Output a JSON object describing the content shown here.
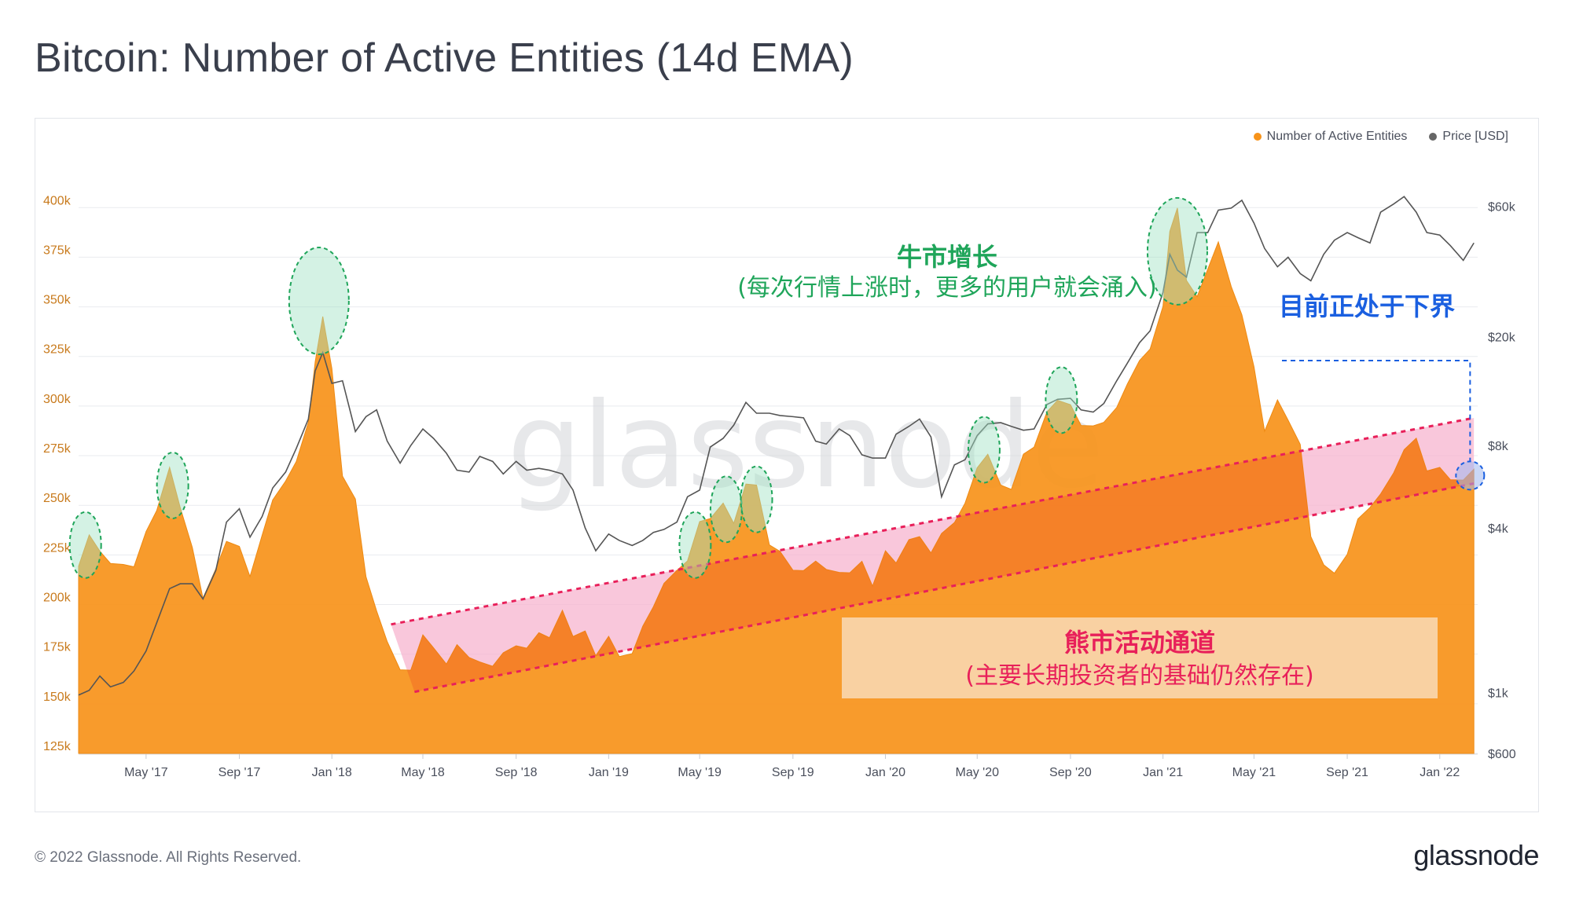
{
  "title": "Bitcoin: Number of Active Entities (14d EMA)",
  "footer": {
    "copyright": "© 2022 Glassnode. All Rights Reserved.",
    "logo": "glassnode"
  },
  "colors": {
    "entities": "#f7931a",
    "price": "#555555",
    "bull_annotation": "#1fa55a",
    "bear_annotation": "#e8205a",
    "current_annotation": "#1a5fe0"
  },
  "chart_data": {
    "type": "area",
    "title": "Bitcoin: Number of Active Entities (14d EMA)",
    "legend_position": "top-right",
    "grid": true,
    "watermark": "glassnode",
    "x_tick_labels": [
      "May '17",
      "Sep '17",
      "Jan '18",
      "May '18",
      "Sep '18",
      "Jan '19",
      "May '19",
      "Sep '19",
      "Jan '20",
      "May '20",
      "Sep '20",
      "Jan '21",
      "May '21",
      "Sep '21",
      "Jan '22"
    ],
    "y_left": {
      "label": "",
      "range": [
        125000,
        410000
      ],
      "tick_values": [
        125000,
        150000,
        175000,
        200000,
        225000,
        250000,
        275000,
        300000,
        325000,
        350000,
        375000,
        400000
      ],
      "tick_labels": [
        "125k",
        "150k",
        "175k",
        "200k",
        "225k",
        "250k",
        "275k",
        "300k",
        "325k",
        "350k",
        "375k",
        "400k"
      ]
    },
    "y_right": {
      "label": "",
      "scale": "log",
      "range": [
        600,
        70000
      ],
      "tick_values": [
        600,
        1000,
        4000,
        8000,
        20000,
        60000
      ],
      "tick_labels": [
        "$600",
        "$1k",
        "$4k",
        "$8k",
        "$20k",
        "$60k"
      ]
    },
    "series": [
      {
        "name": "Number of Active Entities",
        "type": "area",
        "color": "#f7931a",
        "x": [
          "2017-02-01",
          "2017-02-15",
          "2017-03-01",
          "2017-03-15",
          "2017-04-01",
          "2017-04-15",
          "2017-05-01",
          "2017-05-15",
          "2017-06-01",
          "2017-06-15",
          "2017-07-01",
          "2017-07-15",
          "2017-08-01",
          "2017-08-15",
          "2017-09-01",
          "2017-09-15",
          "2017-10-01",
          "2017-10-15",
          "2017-11-01",
          "2017-11-15",
          "2017-12-01",
          "2017-12-10",
          "2017-12-20",
          "2018-01-01",
          "2018-01-15",
          "2018-02-01",
          "2018-02-15",
          "2018-03-01",
          "2018-03-15",
          "2018-04-01",
          "2018-04-15",
          "2018-05-01",
          "2018-05-15",
          "2018-06-01",
          "2018-06-15",
          "2018-07-01",
          "2018-07-15",
          "2018-08-01",
          "2018-08-15",
          "2018-09-01",
          "2018-09-15",
          "2018-10-01",
          "2018-10-15",
          "2018-11-01",
          "2018-11-15",
          "2018-12-01",
          "2018-12-15",
          "2019-01-01",
          "2019-01-15",
          "2019-02-01",
          "2019-02-15",
          "2019-03-01",
          "2019-03-15",
          "2019-04-01",
          "2019-04-15",
          "2019-05-01",
          "2019-05-15",
          "2019-06-01",
          "2019-06-15",
          "2019-07-01",
          "2019-07-15",
          "2019-08-01",
          "2019-08-15",
          "2019-09-01",
          "2019-09-15",
          "2019-10-01",
          "2019-10-15",
          "2019-11-01",
          "2019-11-15",
          "2019-12-01",
          "2019-12-15",
          "2020-01-01",
          "2020-01-15",
          "2020-02-01",
          "2020-02-15",
          "2020-03-01",
          "2020-03-15",
          "2020-04-01",
          "2020-04-15",
          "2020-05-01",
          "2020-05-15",
          "2020-06-01",
          "2020-06-15",
          "2020-07-01",
          "2020-07-15",
          "2020-08-01",
          "2020-08-15",
          "2020-09-01",
          "2020-09-15",
          "2020-10-01",
          "2020-10-15",
          "2020-11-01",
          "2020-11-15",
          "2020-12-01",
          "2020-12-15",
          "2021-01-01",
          "2021-01-10",
          "2021-01-20",
          "2021-02-01",
          "2021-02-15",
          "2021-03-01",
          "2021-03-15",
          "2021-04-01",
          "2021-04-15",
          "2021-05-01",
          "2021-05-15",
          "2021-06-01",
          "2021-06-15",
          "2021-07-01",
          "2021-07-15",
          "2021-08-01",
          "2021-08-15",
          "2021-09-01",
          "2021-09-15",
          "2021-10-01",
          "2021-10-15",
          "2021-11-01",
          "2021-11-15",
          "2021-12-01",
          "2021-12-15",
          "2022-01-01",
          "2022-01-15",
          "2022-02-01",
          "2022-02-15"
        ],
        "values": [
          222000,
          236000,
          226000,
          218000,
          222000,
          219000,
          235000,
          250000,
          270000,
          248000,
          226000,
          205000,
          218000,
          230000,
          232000,
          215000,
          234000,
          250000,
          264000,
          272000,
          290000,
          325000,
          346000,
          318000,
          262000,
          255000,
          214000,
          195000,
          184000,
          168000,
          166000,
          182000,
          180000,
          170000,
          178000,
          176000,
          172000,
          168000,
          173000,
          181000,
          178000,
          184000,
          186000,
          198000,
          183000,
          184000,
          176000,
          184000,
          172000,
          178000,
          190000,
          198000,
          208000,
          219000,
          222000,
          240000,
          246000,
          252000,
          240000,
          258000,
          262000,
          230000,
          225000,
          220000,
          218000,
          221000,
          215000,
          218000,
          216000,
          220000,
          212000,
          228000,
          220000,
          230000,
          236000,
          226000,
          234000,
          244000,
          252000,
          268000,
          273000,
          262000,
          258000,
          274000,
          282000,
          298000,
          302000,
          298000,
          292000,
          290000,
          290000,
          302000,
          312000,
          322000,
          326000,
          352000,
          388000,
          398000,
          366000,
          356000,
          368000,
          380000,
          362000,
          346000,
          318000,
          290000,
          304000,
          292000,
          278000,
          236000,
          220000,
          214000,
          228000,
          244000,
          248000,
          253000,
          268000,
          278000,
          282000,
          270000,
          270000,
          262000,
          260000,
          270000
        ]
      },
      {
        "name": "Price [USD]",
        "type": "line",
        "color": "#555555",
        "x": [
          "2017-02-01",
          "2017-02-15",
          "2017-03-01",
          "2017-03-15",
          "2017-04-01",
          "2017-04-15",
          "2017-05-01",
          "2017-05-15",
          "2017-06-01",
          "2017-06-15",
          "2017-07-01",
          "2017-07-15",
          "2017-08-01",
          "2017-08-15",
          "2017-09-01",
          "2017-09-15",
          "2017-10-01",
          "2017-10-15",
          "2017-11-01",
          "2017-11-15",
          "2017-12-01",
          "2017-12-10",
          "2017-12-20",
          "2018-01-01",
          "2018-01-15",
          "2018-02-01",
          "2018-02-15",
          "2018-03-01",
          "2018-03-15",
          "2018-04-01",
          "2018-04-15",
          "2018-05-01",
          "2018-05-15",
          "2018-06-01",
          "2018-06-15",
          "2018-07-01",
          "2018-07-15",
          "2018-08-01",
          "2018-08-15",
          "2018-09-01",
          "2018-09-15",
          "2018-10-01",
          "2018-10-15",
          "2018-11-01",
          "2018-11-15",
          "2018-12-01",
          "2018-12-15",
          "2019-01-01",
          "2019-01-15",
          "2019-02-01",
          "2019-02-15",
          "2019-03-01",
          "2019-03-15",
          "2019-04-01",
          "2019-04-15",
          "2019-05-01",
          "2019-05-15",
          "2019-06-01",
          "2019-06-15",
          "2019-07-01",
          "2019-07-15",
          "2019-08-01",
          "2019-08-15",
          "2019-09-01",
          "2019-09-15",
          "2019-10-01",
          "2019-10-15",
          "2019-11-01",
          "2019-11-15",
          "2019-12-01",
          "2019-12-15",
          "2020-01-01",
          "2020-01-15",
          "2020-02-01",
          "2020-02-15",
          "2020-03-01",
          "2020-03-15",
          "2020-04-01",
          "2020-04-15",
          "2020-05-01",
          "2020-05-15",
          "2020-06-01",
          "2020-06-15",
          "2020-07-01",
          "2020-07-15",
          "2020-08-01",
          "2020-08-15",
          "2020-09-01",
          "2020-09-15",
          "2020-10-01",
          "2020-10-15",
          "2020-11-01",
          "2020-11-15",
          "2020-12-01",
          "2020-12-15",
          "2021-01-01",
          "2021-01-10",
          "2021-01-20",
          "2021-02-01",
          "2021-02-15",
          "2021-03-01",
          "2021-03-15",
          "2021-04-01",
          "2021-04-15",
          "2021-05-01",
          "2021-05-15",
          "2021-06-01",
          "2021-06-15",
          "2021-07-01",
          "2021-07-15",
          "2021-08-01",
          "2021-08-15",
          "2021-09-01",
          "2021-09-15",
          "2021-10-01",
          "2021-10-15",
          "2021-11-01",
          "2021-11-15",
          "2021-12-01",
          "2021-12-15",
          "2022-01-01",
          "2022-01-15",
          "2022-02-01",
          "2022-02-15"
        ],
        "values": [
          980,
          1020,
          1150,
          1050,
          1090,
          1200,
          1420,
          1800,
          2400,
          2500,
          2500,
          2200,
          2800,
          4200,
          4700,
          3700,
          4400,
          5600,
          6400,
          7800,
          10000,
          15000,
          17500,
          13500,
          13800,
          9000,
          10200,
          10800,
          8300,
          6900,
          8000,
          9200,
          8500,
          7500,
          6500,
          6400,
          7300,
          7000,
          6300,
          7000,
          6500,
          6600,
          6500,
          6300,
          5500,
          4000,
          3300,
          3800,
          3600,
          3450,
          3600,
          3850,
          3950,
          4200,
          5200,
          5500,
          7900,
          8500,
          9500,
          11500,
          10500,
          10500,
          10300,
          10200,
          10100,
          8300,
          8100,
          9200,
          8700,
          7400,
          7200,
          7200,
          8800,
          9400,
          10000,
          8600,
          5200,
          6800,
          7100,
          8700,
          9600,
          9700,
          9400,
          9100,
          9200,
          11300,
          11800,
          11900,
          10800,
          10600,
          11400,
          13800,
          16000,
          19000,
          21000,
          29000,
          40000,
          35000,
          33000,
          48000,
          48000,
          58000,
          59000,
          63000,
          52000,
          42000,
          36000,
          39000,
          34000,
          32000,
          40000,
          45000,
          48000,
          46000,
          44000,
          57000,
          61000,
          65000,
          57000,
          48000,
          47000,
          43000,
          38000,
          44000
        ]
      }
    ],
    "annotations": {
      "bull_title": "牛市增长",
      "bull_subtitle": "(每次行情上涨时，更多的用户就会涌入)",
      "bear_title": "熊市活动通道",
      "bear_subtitle": "(主要长期投资者的基础仍然存在)",
      "current": "目前正处于下界",
      "channel_upper": [
        [
          "2018-03-20",
          190000
        ],
        [
          "2022-02-15",
          294000
        ]
      ],
      "channel_lower": [
        [
          "2018-04-20",
          156000
        ],
        [
          "2022-02-15",
          261000
        ]
      ],
      "bull_peaks": [
        [
          "2017-02-10",
          230000
        ],
        [
          "2017-06-05",
          260000
        ],
        [
          "2017-12-15",
          353000
        ],
        [
          "2019-04-25",
          230000
        ],
        [
          "2019-06-05",
          248000
        ],
        [
          "2019-07-15",
          253000
        ],
        [
          "2020-05-10",
          278000
        ],
        [
          "2020-08-20",
          303000
        ],
        [
          "2021-01-20",
          378000
        ]
      ],
      "current_marker": [
        "2022-02-10",
        265000
      ]
    }
  }
}
